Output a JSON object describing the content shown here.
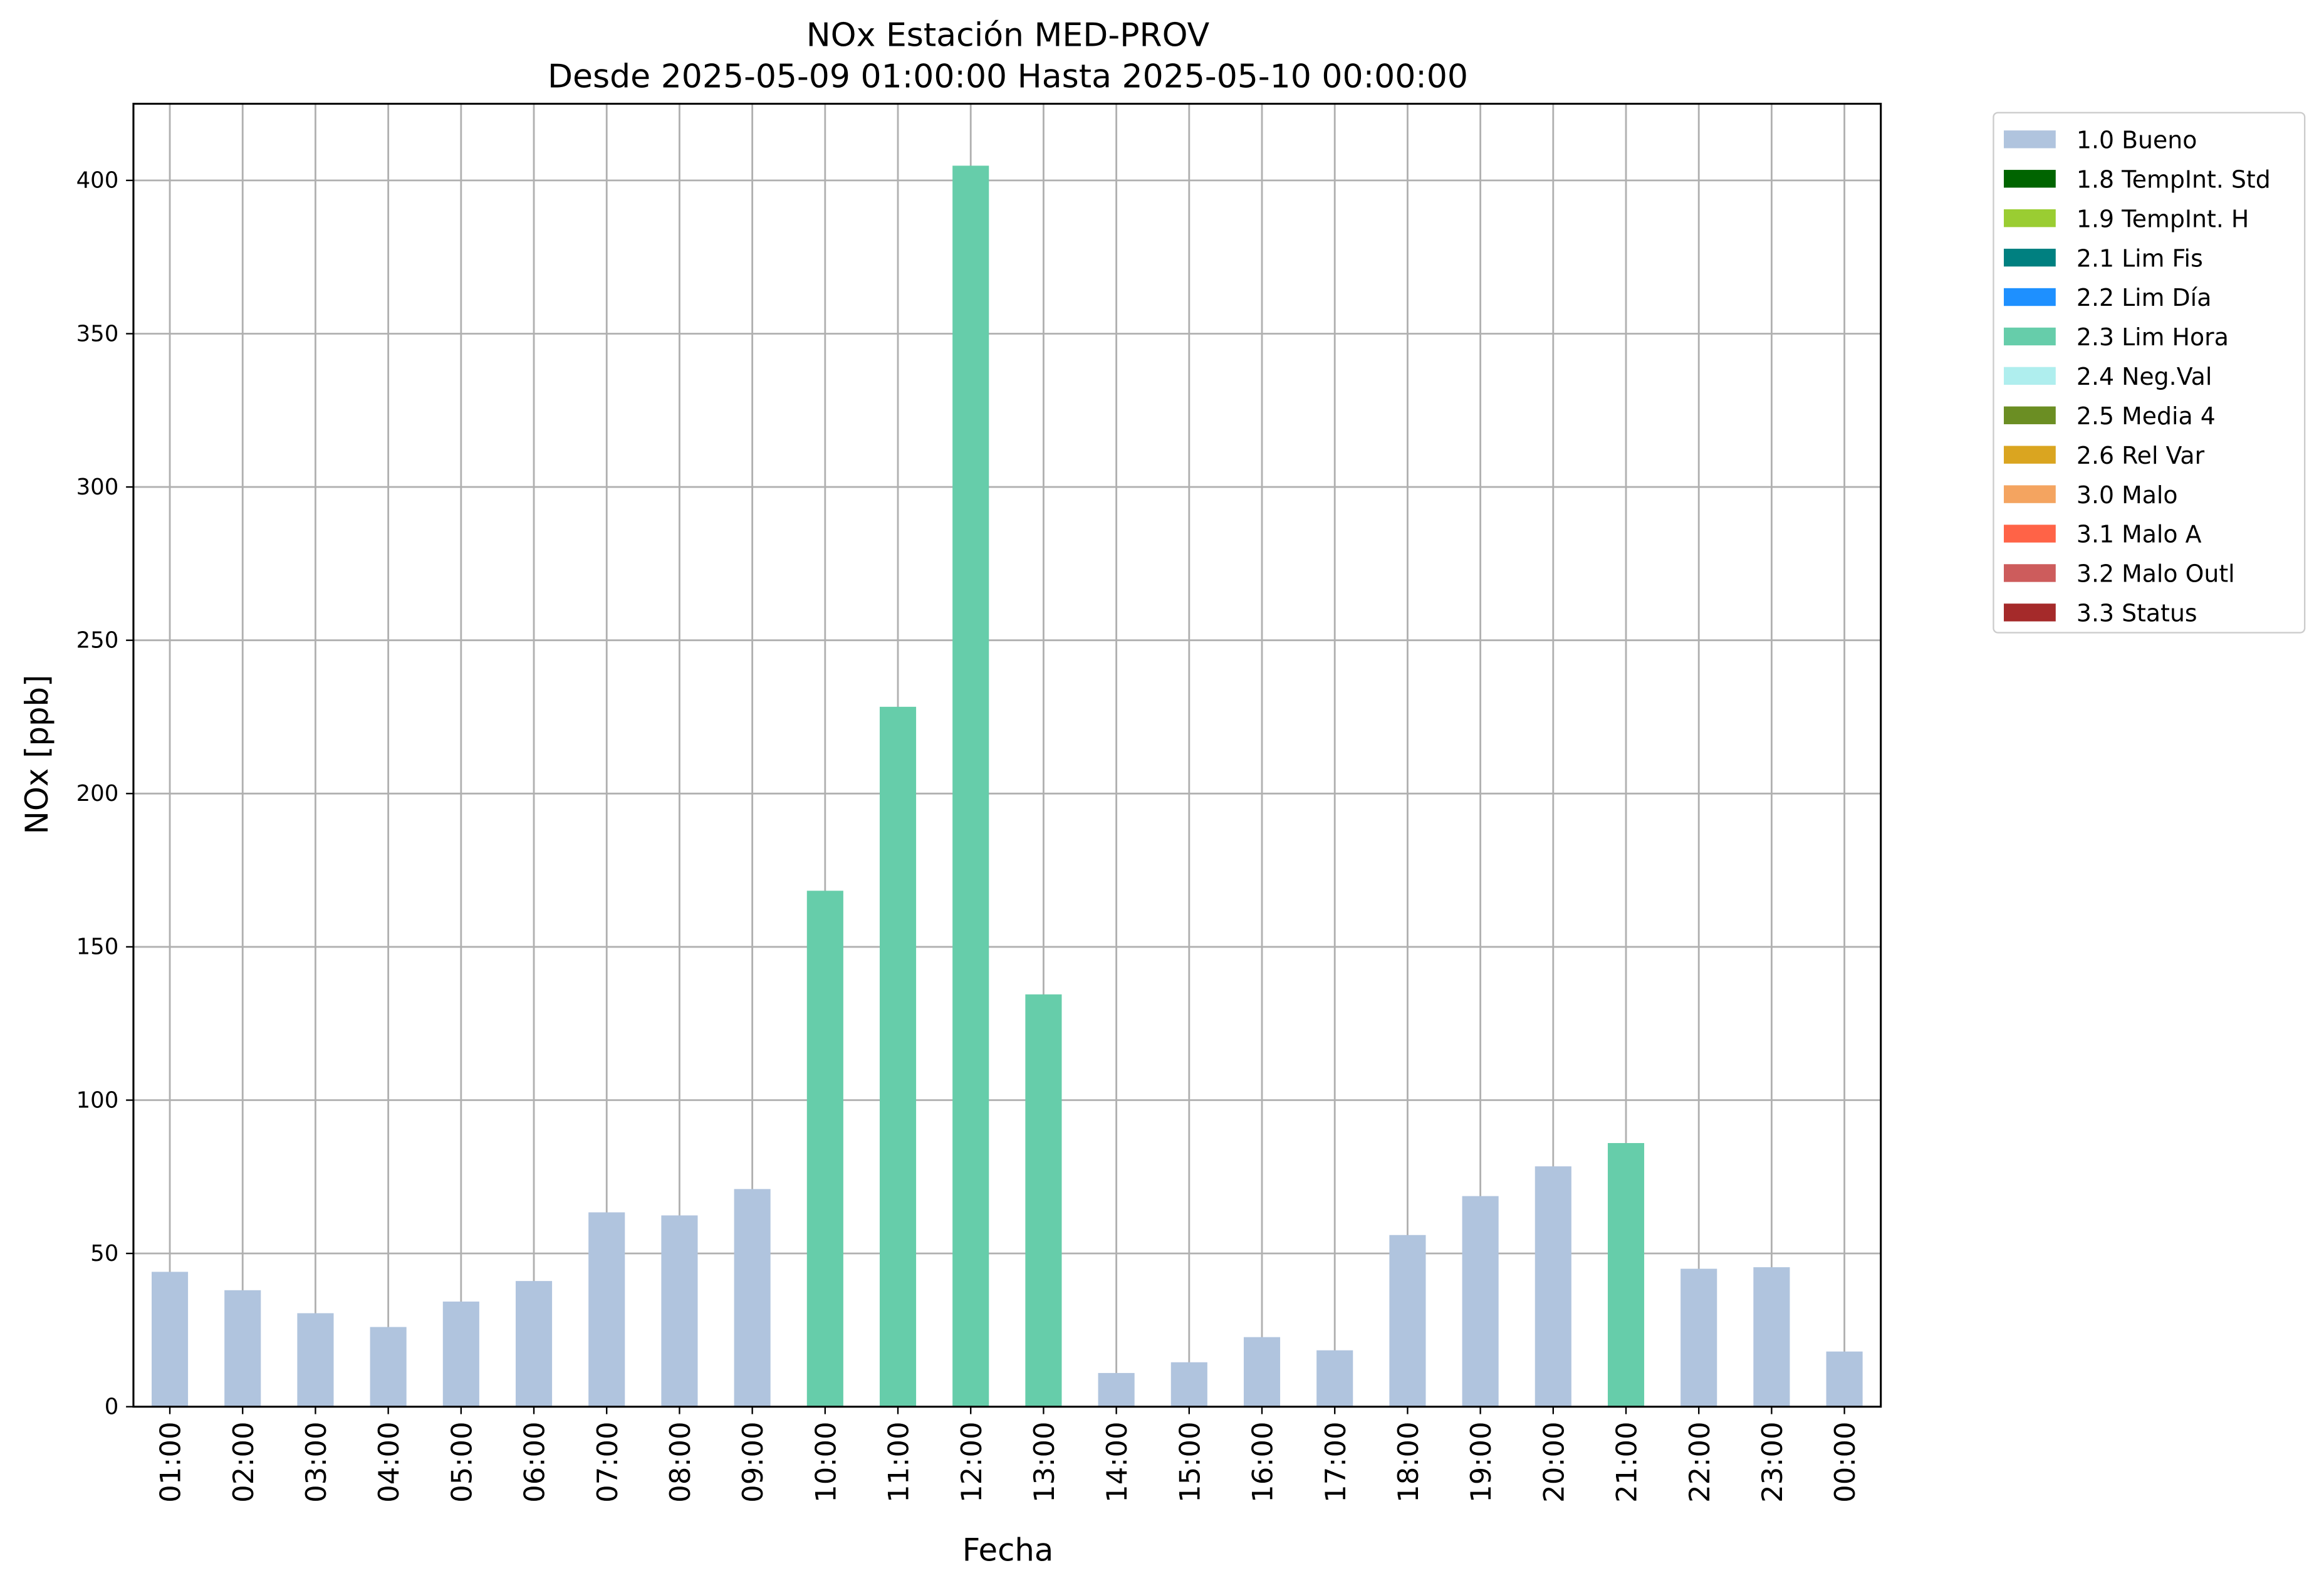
{
  "chart_data": {
    "type": "bar",
    "stacked": true,
    "title": "NOx Estación MED-PROV",
    "subtitle": "Desde 2025-05-09 01:00:00 Hasta 2025-05-10 00:00:00",
    "x_label": "Fecha",
    "y_label": "NOx [ppb]",
    "categories": [
      "01:00",
      "02:00",
      "03:00",
      "04:00",
      "05:00",
      "06:00",
      "07:00",
      "08:00",
      "09:00",
      "10:00",
      "11:00",
      "12:00",
      "13:00",
      "14:00",
      "15:00",
      "16:00",
      "17:00",
      "18:00",
      "19:00",
      "20:00",
      "21:00",
      "22:00",
      "23:00",
      "00:00"
    ],
    "series": [
      {
        "name": "1.0 Bueno",
        "color": "#b0c4de",
        "values": [
          44,
          38,
          30.5,
          26,
          34.3,
          41,
          63.4,
          62.4,
          71,
          null,
          null,
          null,
          null,
          11,
          14.5,
          22.7,
          18.4,
          56,
          68.7,
          78.4,
          null,
          45,
          45.5,
          18
        ]
      },
      {
        "name": "1.8 TempInt. Std",
        "color": "#006400",
        "values": [
          null,
          null,
          null,
          null,
          null,
          null,
          null,
          null,
          null,
          null,
          null,
          null,
          null,
          null,
          null,
          null,
          null,
          null,
          null,
          null,
          null,
          null,
          null,
          null
        ]
      },
      {
        "name": "1.9 TempInt. H",
        "color": "#9acd32",
        "values": [
          null,
          null,
          null,
          null,
          null,
          null,
          null,
          null,
          null,
          null,
          null,
          null,
          null,
          null,
          null,
          null,
          null,
          null,
          null,
          null,
          null,
          null,
          null,
          null
        ]
      },
      {
        "name": "2.1 Lim Fis",
        "color": "#008080",
        "values": [
          null,
          null,
          null,
          null,
          null,
          null,
          null,
          null,
          null,
          null,
          null,
          null,
          null,
          null,
          null,
          null,
          null,
          null,
          null,
          null,
          null,
          null,
          null,
          null
        ]
      },
      {
        "name": "2.2 Lim Día",
        "color": "#1e90ff",
        "values": [
          null,
          null,
          null,
          null,
          null,
          null,
          null,
          null,
          null,
          null,
          null,
          null,
          null,
          null,
          null,
          null,
          null,
          null,
          null,
          null,
          null,
          null,
          null,
          null
        ]
      },
      {
        "name": "2.3 Lim Hora",
        "color": "#66cdaa",
        "values": [
          null,
          null,
          null,
          null,
          null,
          null,
          null,
          null,
          null,
          168.3,
          228.3,
          404.8,
          134.5,
          null,
          null,
          null,
          null,
          null,
          null,
          null,
          86,
          null,
          null,
          null
        ]
      },
      {
        "name": "2.4 Neg.Val",
        "color": "#afeeee",
        "values": [
          null,
          null,
          null,
          null,
          null,
          null,
          null,
          null,
          null,
          null,
          null,
          null,
          null,
          null,
          null,
          null,
          null,
          null,
          null,
          null,
          null,
          null,
          null,
          null
        ]
      },
      {
        "name": "2.5 Media 4",
        "color": "#6b8e23",
        "values": [
          null,
          null,
          null,
          null,
          null,
          null,
          null,
          null,
          null,
          null,
          null,
          null,
          null,
          null,
          null,
          null,
          null,
          null,
          null,
          null,
          null,
          null,
          null,
          null
        ]
      },
      {
        "name": "2.6 Rel Var",
        "color": "#daa520",
        "values": [
          null,
          null,
          null,
          null,
          null,
          null,
          null,
          null,
          null,
          null,
          null,
          null,
          null,
          null,
          null,
          null,
          null,
          null,
          null,
          null,
          null,
          null,
          null,
          null
        ]
      },
      {
        "name": "3.0 Malo",
        "color": "#f4a460",
        "values": [
          null,
          null,
          null,
          null,
          null,
          null,
          null,
          null,
          null,
          null,
          null,
          null,
          null,
          null,
          null,
          null,
          null,
          null,
          null,
          null,
          null,
          null,
          null,
          null
        ]
      },
      {
        "name": "3.1 Malo A",
        "color": "#ff6347",
        "values": [
          null,
          null,
          null,
          null,
          null,
          null,
          null,
          null,
          null,
          null,
          null,
          null,
          null,
          null,
          null,
          null,
          null,
          null,
          null,
          null,
          null,
          null,
          null,
          null
        ]
      },
      {
        "name": "3.2 Malo Outl",
        "color": "#cd5c5c",
        "values": [
          null,
          null,
          null,
          null,
          null,
          null,
          null,
          null,
          null,
          null,
          null,
          null,
          null,
          null,
          null,
          null,
          null,
          null,
          null,
          null,
          null,
          null,
          null,
          null
        ]
      },
      {
        "name": "3.3 Status",
        "color": "#a52a2a",
        "values": [
          null,
          null,
          null,
          null,
          null,
          null,
          null,
          null,
          null,
          null,
          null,
          null,
          null,
          null,
          null,
          null,
          null,
          null,
          null,
          null,
          null,
          null,
          null,
          null
        ]
      }
    ],
    "ylim": [
      0,
      425
    ],
    "yticks": [
      0,
      50,
      100,
      150,
      200,
      250,
      300,
      350,
      400
    ],
    "grid": true,
    "legend": "outside upper right"
  }
}
